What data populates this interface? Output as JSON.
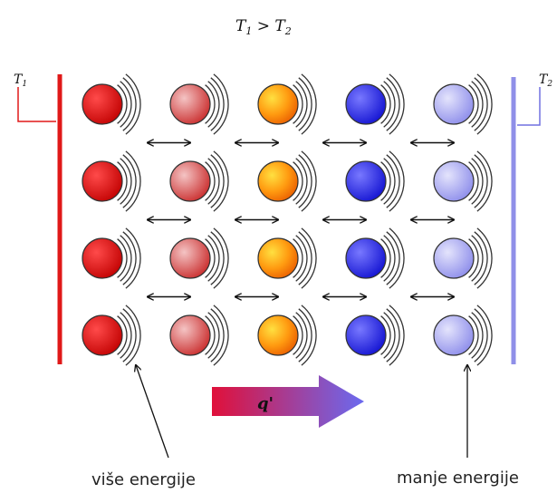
{
  "title": {
    "t1": "T",
    "t1_sub": "1",
    "op": " > ",
    "t2": "T",
    "t2_sub": "2"
  },
  "left_wall_label": {
    "t": "T",
    "sub": "1"
  },
  "right_wall_label": {
    "t": "T",
    "sub": "2"
  },
  "heat_flow_label": "q'",
  "left_caption": "više energije",
  "right_caption": "manje energije",
  "colors": {
    "hot_wall": "#e01818",
    "cold_wall": "#8f8fe8",
    "arrow_left": "#e0103a",
    "arrow_right": "#6a6af0",
    "column_1": "#d81010",
    "column_2": "#d86a6a",
    "column_3": "#f28a10",
    "column_4": "#2a2ae8",
    "column_5": "#a8a8f4"
  },
  "grid": {
    "rows": 4,
    "columns": 5
  }
}
